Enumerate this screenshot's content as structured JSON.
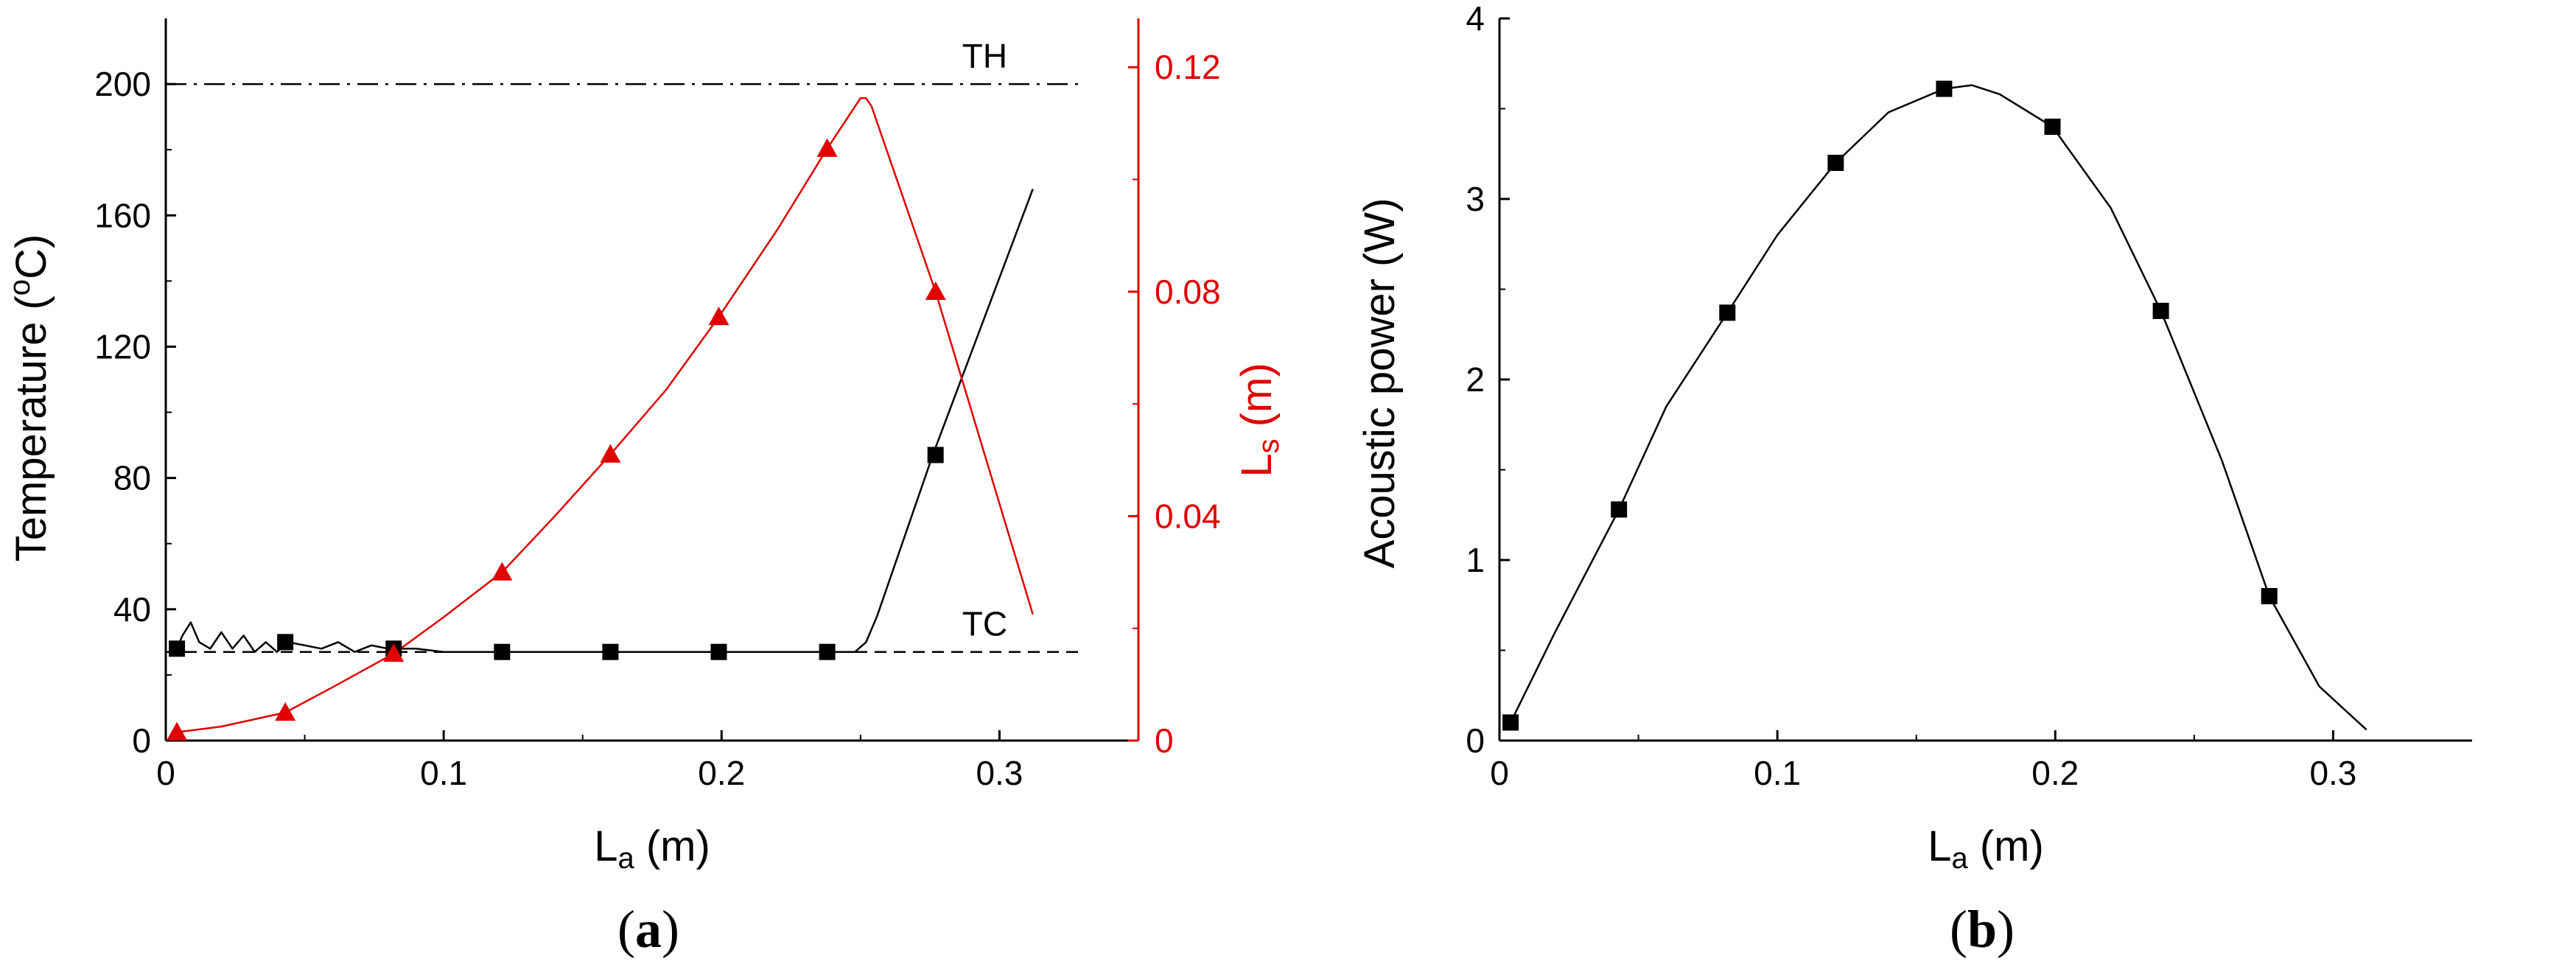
{
  "chart_data": [
    {
      "id": "a",
      "type": "line",
      "panel_label": {
        "open": "(",
        "letter": "a",
        "close": ")"
      },
      "title": "",
      "xlabel": {
        "main": "L",
        "sub": "a",
        "unit": " (m)"
      },
      "ylabel_left": "Temperature (°C)",
      "ylabel_left_parts": {
        "pre": "Temperature (",
        "sup": "o",
        "post": "C)"
      },
      "ylabel_right": {
        "main": "L",
        "sub": "s",
        "unit": " (m)"
      },
      "xlim": [
        0,
        0.35
      ],
      "ylim_left": [
        0,
        220
      ],
      "ylim_right": [
        0,
        0.1287
      ],
      "x_ticks": [
        "0",
        "0.1",
        "0.2",
        "0.3"
      ],
      "x_tick_values": [
        0,
        0.1,
        0.2,
        0.3
      ],
      "y_left_ticks": [
        "0",
        "40",
        "80",
        "120",
        "160",
        "200"
      ],
      "y_left_tick_values": [
        0,
        40,
        80,
        120,
        160,
        200
      ],
      "y_right_ticks": [
        "0",
        "0.04",
        "0.08",
        "0.12"
      ],
      "y_right_tick_values": [
        0,
        0.04,
        0.08,
        0.12
      ],
      "reference_lines": [
        {
          "label": "TH",
          "y": 200,
          "style": "dash-dot"
        },
        {
          "label": "TC",
          "y": 27,
          "style": "dashed"
        }
      ],
      "series": [
        {
          "axis": "left",
          "color": "#000000",
          "marker": "square",
          "line": {
            "x": [
              0.004,
              0.006,
              0.009,
              0.012,
              0.016,
              0.02,
              0.024,
              0.028,
              0.032,
              0.036,
              0.04,
              0.044,
              0.05,
              0.056,
              0.062,
              0.068,
              0.074,
              0.08,
              0.09,
              0.1,
              0.12,
              0.16,
              0.2,
              0.238,
              0.248,
              0.252,
              0.256,
              0.276,
              0.312
            ],
            "y": [
              28,
              32,
              36,
              30,
              28,
              33,
              28,
              32,
              27,
              30,
              27,
              30,
              29,
              28,
              30,
              27,
              29,
              28,
              28,
              27,
              27,
              27,
              27,
              27,
              27,
              30,
              38,
              87,
              168
            ]
          },
          "markers": {
            "x": [
              0.004,
              0.043,
              0.082,
              0.121,
              0.16,
              0.199,
              0.238,
              0.277
            ],
            "y": [
              28,
              30,
              28,
              27,
              27,
              27,
              27,
              87
            ]
          }
        },
        {
          "axis": "right",
          "color": "#e00000",
          "marker": "triangle",
          "line": {
            "x": [
              0.004,
              0.02,
              0.043,
              0.06,
              0.082,
              0.1,
              0.121,
              0.14,
              0.16,
              0.18,
              0.199,
              0.22,
              0.238,
              0.25,
              0.252,
              0.254,
              0.277,
              0.312
            ],
            "y": [
              0.0015,
              0.0025,
              0.005,
              0.0095,
              0.0155,
              0.022,
              0.03,
              0.04,
              0.051,
              0.0625,
              0.0755,
              0.091,
              0.1055,
              0.1145,
              0.1145,
              0.113,
              0.08,
              0.0225
            ]
          },
          "markers": {
            "x": [
              0.004,
              0.043,
              0.082,
              0.121,
              0.16,
              0.199,
              0.238,
              0.277
            ],
            "y": [
              0.0015,
              0.005,
              0.0155,
              0.03,
              0.051,
              0.0755,
              0.1055,
              0.08
            ]
          }
        }
      ]
    },
    {
      "id": "b",
      "type": "line",
      "panel_label": {
        "open": "(",
        "letter": "b",
        "close": ")"
      },
      "title": "",
      "xlabel": {
        "main": "L",
        "sub": "a",
        "unit": " (m)"
      },
      "ylabel": "Acoustic power (W)",
      "xlim": [
        0,
        0.35
      ],
      "ylim": [
        0,
        4
      ],
      "x_ticks": [
        "0",
        "0.1",
        "0.2",
        "0.3"
      ],
      "x_tick_values": [
        0,
        0.1,
        0.2,
        0.3
      ],
      "y_ticks": [
        "0",
        "1",
        "2",
        "3",
        "4"
      ],
      "y_tick_values": [
        0,
        1,
        2,
        3,
        4
      ],
      "series": [
        {
          "color": "#000000",
          "marker": "square",
          "line": {
            "x": [
              0.004,
              0.02,
              0.043,
              0.06,
              0.082,
              0.1,
              0.121,
              0.14,
              0.16,
              0.17,
              0.18,
              0.199,
              0.22,
              0.238,
              0.26,
              0.277,
              0.295,
              0.312
            ],
            "y": [
              0.1,
              0.6,
              1.28,
              1.85,
              2.37,
              2.8,
              3.2,
              3.48,
              3.61,
              3.63,
              3.58,
              3.4,
              2.95,
              2.38,
              1.55,
              0.8,
              0.3,
              0.06
            ]
          },
          "markers": {
            "x": [
              0.004,
              0.043,
              0.082,
              0.121,
              0.16,
              0.199,
              0.238,
              0.277
            ],
            "y": [
              0.1,
              1.28,
              2.37,
              3.2,
              3.61,
              3.4,
              2.38,
              0.8
            ]
          }
        }
      ]
    }
  ]
}
